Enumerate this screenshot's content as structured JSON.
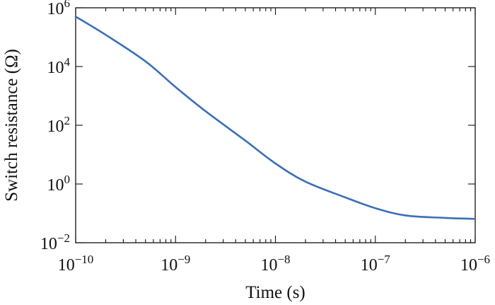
{
  "chart_data": {
    "type": "line",
    "title": "",
    "xlabel": "Time (s)",
    "ylabel": "Switch resistance (Ω)",
    "x_scale": "log",
    "y_scale": "log",
    "xlim": [
      1e-10,
      1e-06
    ],
    "ylim": [
      0.01,
      1000000
    ],
    "grid": false,
    "x_ticks": [
      {
        "value": 1e-10,
        "base": "10",
        "exp": "−10"
      },
      {
        "value": 1e-09,
        "base": "10",
        "exp": "−9"
      },
      {
        "value": 1e-08,
        "base": "10",
        "exp": "−8"
      },
      {
        "value": 1e-07,
        "base": "10",
        "exp": "−7"
      },
      {
        "value": 1e-06,
        "base": "10",
        "exp": "−6"
      }
    ],
    "y_ticks": [
      {
        "value": 0.01,
        "base": "10",
        "exp": "−2"
      },
      {
        "value": 1,
        "base": "10",
        "exp": "0"
      },
      {
        "value": 100,
        "base": "10",
        "exp": "2"
      },
      {
        "value": 10000,
        "base": "10",
        "exp": "4"
      },
      {
        "value": 1000000,
        "base": "10",
        "exp": "6"
      }
    ],
    "series": [
      {
        "color": "#3a6fb7",
        "x": [
          1e-10,
          2e-10,
          5e-10,
          1e-09,
          2e-09,
          5e-09,
          1e-08,
          2e-08,
          5e-08,
          1e-07,
          2e-07,
          5e-07,
          1e-06
        ],
        "y": [
          500000,
          120000,
          15000,
          2000,
          300,
          30,
          5,
          1.2,
          0.35,
          0.15,
          0.085,
          0.07,
          0.065
        ]
      }
    ]
  }
}
